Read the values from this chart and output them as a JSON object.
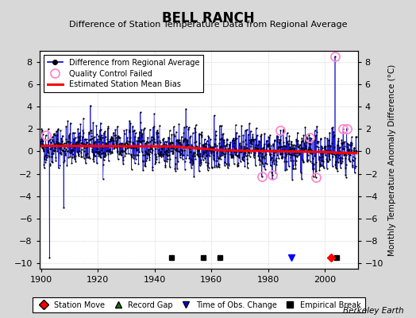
{
  "title": "BELL RANCH",
  "subtitle": "Difference of Station Temperature Data from Regional Average",
  "ylabel": "Monthly Temperature Anomaly Difference (°C)",
  "xlabel_ticks": [
    1900,
    1920,
    1940,
    1960,
    1980,
    2000
  ],
  "ylim": [
    -10.5,
    9.0
  ],
  "xlim": [
    1899.5,
    2011.5
  ],
  "yticks": [
    -10,
    -8,
    -6,
    -4,
    -2,
    0,
    2,
    4,
    6,
    8
  ],
  "background_color": "#d8d8d8",
  "plot_bg_color": "#ffffff",
  "seed": 42,
  "year_start": 1900,
  "year_end": 2011,
  "empirical_breaks": [
    1946,
    1957,
    1963,
    2004
  ],
  "station_moves": [
    2002
  ],
  "time_obs_changes": [
    1988
  ],
  "record_gaps": [],
  "qc_failed_approximate": [
    1902,
    1978,
    1982,
    1984,
    1995,
    1997,
    2004,
    2006,
    2008
  ],
  "line_color": "#0000cc",
  "bias_color": "#ff0000",
  "marker_color": "#000000",
  "qc_color": "#ff88cc",
  "annotation_text": "Berkeley Earth"
}
